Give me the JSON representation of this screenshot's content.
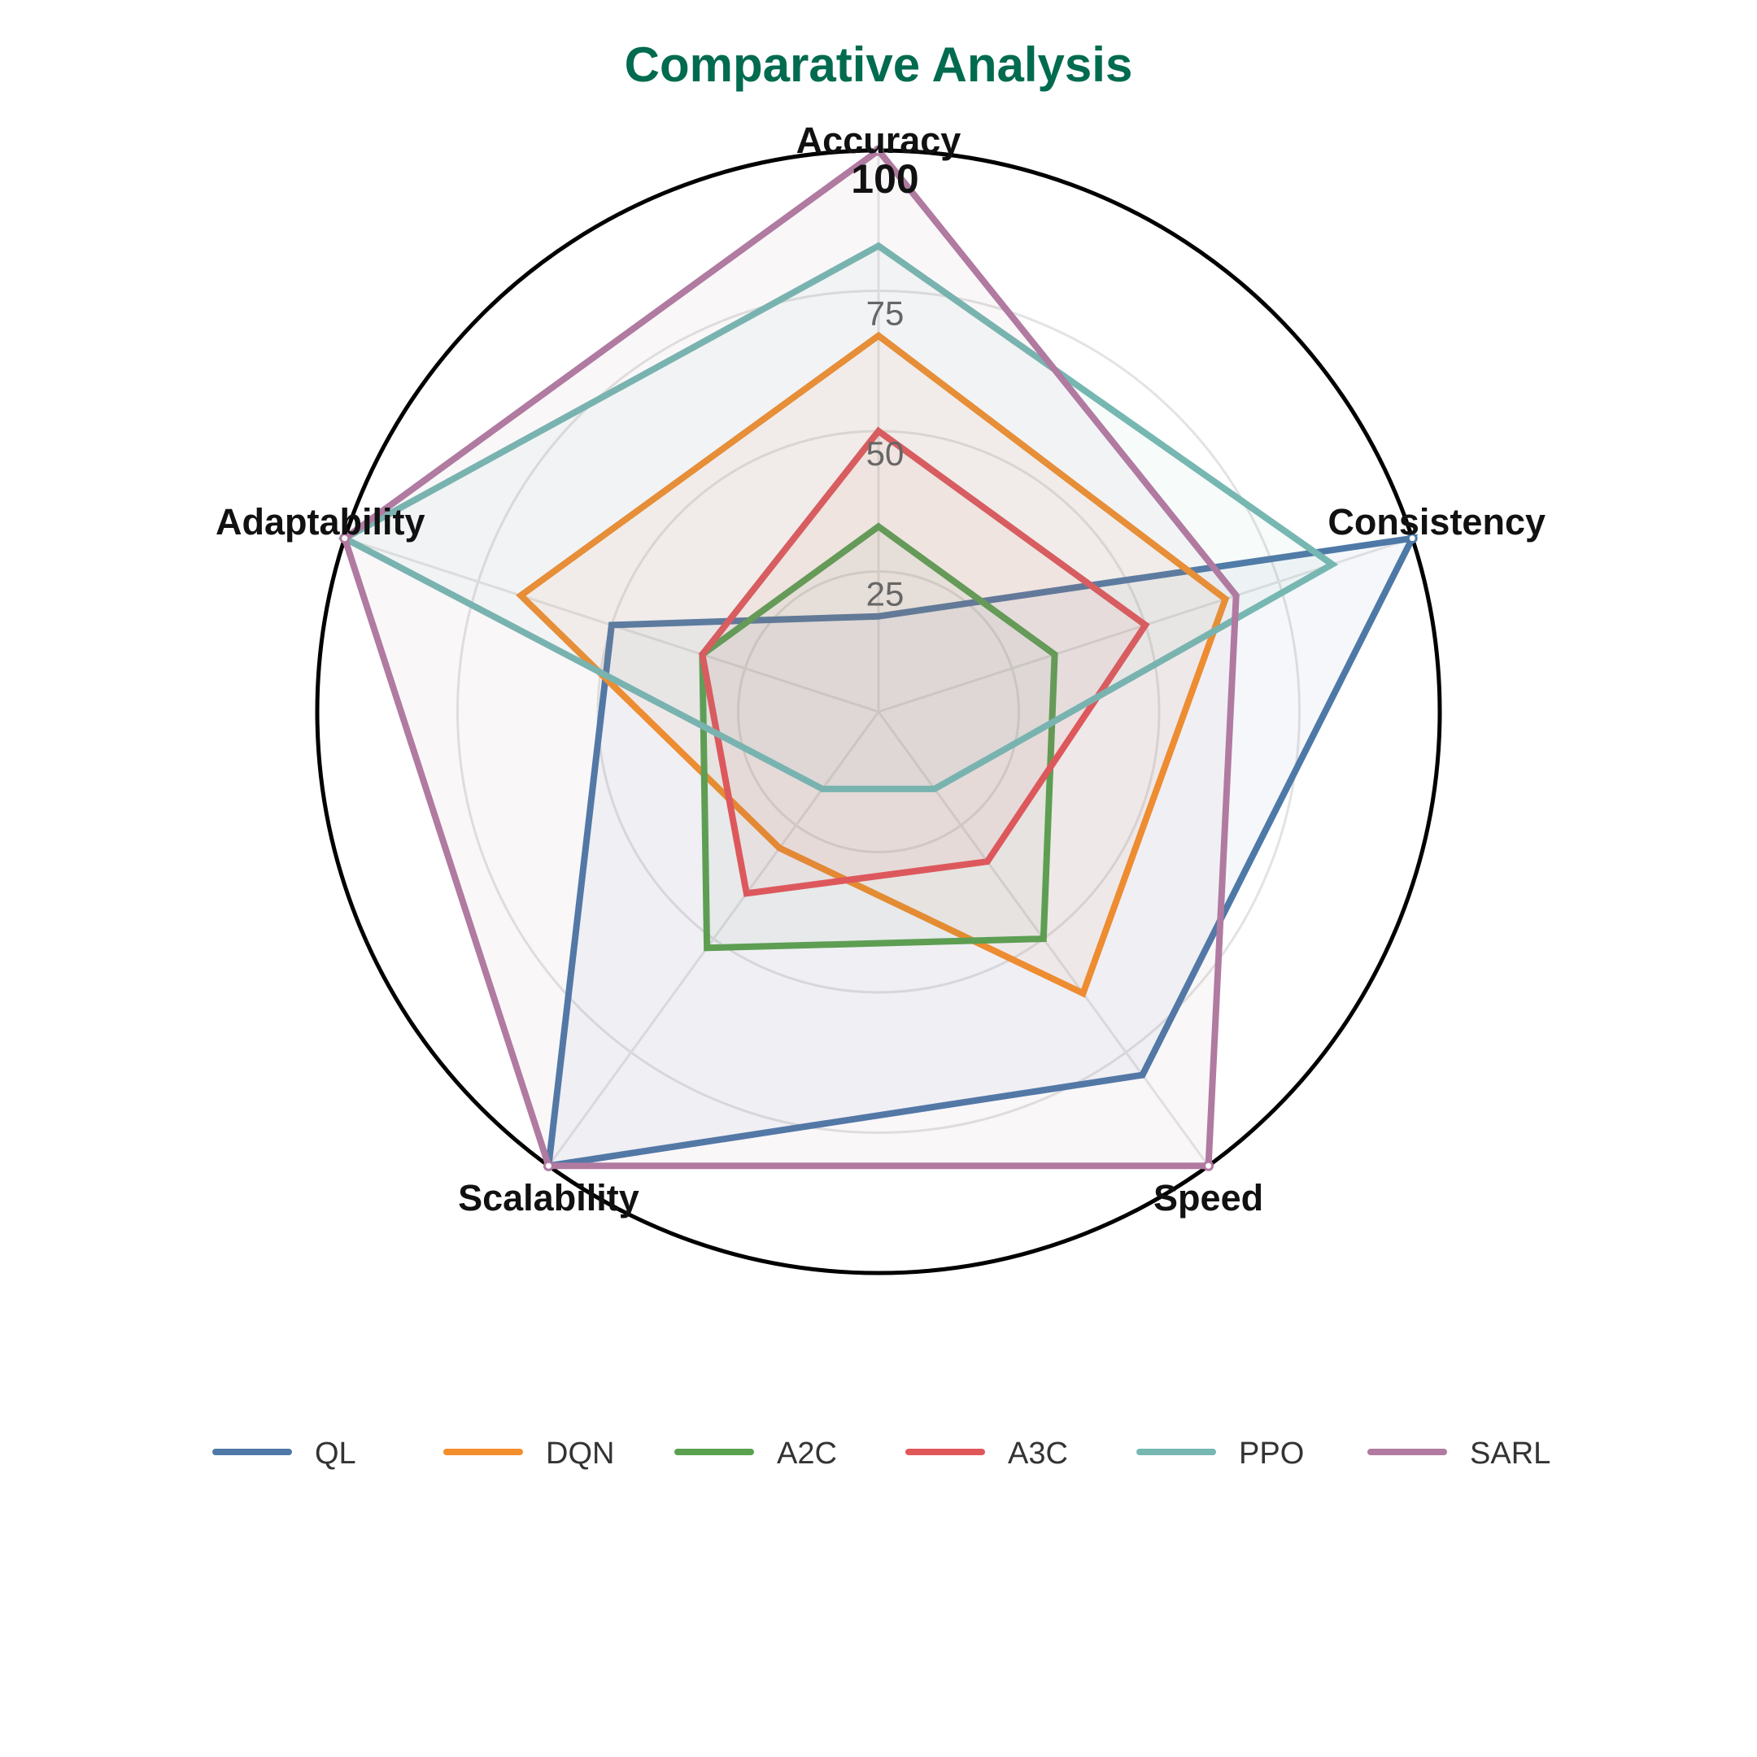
{
  "chart_data": {
    "type": "radar",
    "title": "Comparative Analysis",
    "title_color": "#006b4f",
    "axes": [
      "Accuracy",
      "Consistency",
      "Speed",
      "Scalability",
      "Adaptability"
    ],
    "ylim": [
      0,
      100
    ],
    "ticks": [
      "25",
      "50",
      "75",
      "100"
    ],
    "grid": true,
    "legend_position": "bottom",
    "series": [
      {
        "name": "QL",
        "color": "#4e79a7",
        "values": [
          17,
          100,
          80,
          100,
          50
        ]
      },
      {
        "name": "DQN",
        "color": "#f28e2b",
        "values": [
          67,
          65,
          62,
          30,
          67
        ]
      },
      {
        "name": "A2C",
        "color": "#59a14f",
        "values": [
          33,
          33,
          50,
          52,
          33
        ]
      },
      {
        "name": "A3C",
        "color": "#e15759",
        "values": [
          50,
          50,
          33,
          40,
          33
        ]
      },
      {
        "name": "PPO",
        "color": "#76b7b2",
        "values": [
          83,
          85,
          17,
          17,
          100
        ]
      },
      {
        "name": "SARL",
        "color": "#b07aa1",
        "values": [
          100,
          67,
          100,
          100,
          100
        ]
      }
    ]
  }
}
